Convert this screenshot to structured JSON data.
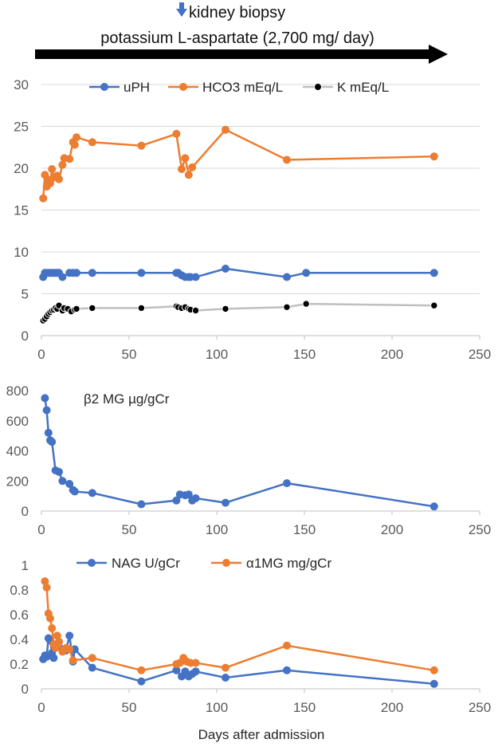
{
  "header": {
    "biopsy_label": "kidney biopsy",
    "biopsy_arrow_color": "#4472C4",
    "treatment_label": "potassium L-aspartate (2,700 mg/ day)"
  },
  "xlabel": "Days after admission",
  "chart_data": [
    {
      "type": "line",
      "title": "",
      "xlim": [
        0,
        250
      ],
      "ylim": [
        0,
        30
      ],
      "xticks": [
        "0",
        "50",
        "100",
        "150",
        "200",
        "250"
      ],
      "yticks": [
        "0",
        "5",
        "10",
        "15",
        "20",
        "25",
        "30"
      ],
      "grid": true,
      "legend_position": "top",
      "series": [
        {
          "name": "uPH",
          "color": "#4472C4",
          "x": [
            1,
            2,
            3,
            4,
            5,
            6,
            7,
            8,
            9,
            10,
            12,
            16,
            18,
            20,
            29,
            57,
            77,
            78,
            80,
            82,
            84,
            85,
            88,
            105,
            140,
            151,
            224
          ],
          "y": [
            7.0,
            7.5,
            7.5,
            7.5,
            7.5,
            7.5,
            7.5,
            7.5,
            7.5,
            7.5,
            7.0,
            7.5,
            7.5,
            7.5,
            7.5,
            7.5,
            7.5,
            7.5,
            7.2,
            7.0,
            7.0,
            7.0,
            7.0,
            8.0,
            7.0,
            7.5,
            7.5
          ]
        },
        {
          "name": "HCO3 mEq/L",
          "color": "#ED7D31",
          "x": [
            1,
            2,
            3,
            4,
            5,
            6,
            7,
            9,
            10,
            12,
            13,
            16,
            18,
            19,
            20,
            29,
            57,
            77,
            80,
            82,
            84,
            86,
            105,
            140,
            224
          ],
          "y": [
            16.4,
            19.2,
            17.8,
            18.6,
            18.2,
            19.9,
            18.9,
            19.1,
            18.7,
            20.4,
            21.2,
            21.1,
            23.1,
            22.8,
            23.7,
            23.1,
            22.7,
            24.1,
            19.9,
            21.2,
            19.2,
            20.1,
            24.6,
            21.0,
            21.4
          ]
        },
        {
          "name": "K mEq/L",
          "color": "#000000",
          "line_color": "#BFBFBF",
          "x": [
            1,
            2,
            3,
            4,
            5,
            6,
            7,
            8,
            9,
            10,
            12,
            13,
            15,
            17,
            19,
            20,
            29,
            57,
            77,
            78,
            80,
            82,
            84,
            85,
            88,
            105,
            140,
            151,
            224
          ],
          "y": [
            1.8,
            2.0,
            2.3,
            2.6,
            2.8,
            3.0,
            3.1,
            3.3,
            3.2,
            3.6,
            3.0,
            3.3,
            3.2,
            2.9,
            3.1,
            3.2,
            3.3,
            3.3,
            3.5,
            3.4,
            3.3,
            3.4,
            3.2,
            3.1,
            3.0,
            3.2,
            3.4,
            3.8,
            3.6
          ]
        }
      ]
    },
    {
      "type": "line",
      "title": "β2 MG µg/gCr",
      "xlim": [
        0,
        250
      ],
      "ylim": [
        0,
        800
      ],
      "xticks": [
        "0",
        "50",
        "100",
        "150",
        "200",
        "250"
      ],
      "yticks": [
        "0",
        "200",
        "400",
        "600",
        "800"
      ],
      "grid": false,
      "series": [
        {
          "name": "β2 MG µg/gCr",
          "color": "#4472C4",
          "x": [
            2,
            3,
            4,
            5,
            6,
            8,
            10,
            12,
            16,
            18,
            19,
            29,
            57,
            77,
            79,
            82,
            84,
            86,
            88,
            105,
            140,
            224
          ],
          "y": [
            750,
            670,
            520,
            470,
            460,
            270,
            260,
            200,
            180,
            140,
            130,
            120,
            45,
            70,
            110,
            105,
            110,
            70,
            85,
            55,
            185,
            30
          ]
        }
      ]
    },
    {
      "type": "line",
      "title": "",
      "xlim": [
        0,
        250
      ],
      "ylim": [
        0,
        1
      ],
      "xticks": [
        "0",
        "50",
        "100",
        "150",
        "200",
        "250"
      ],
      "yticks": [
        "0",
        "0.2",
        "0.4",
        "0.6",
        "0.8",
        "1"
      ],
      "grid": false,
      "legend_position": "top",
      "series": [
        {
          "name": "NAG U/gCr",
          "color": "#4472C4",
          "x": [
            1,
            2,
            3,
            4,
            5,
            6,
            7,
            8,
            10,
            12,
            14,
            16,
            18,
            19,
            29,
            57,
            77,
            80,
            82,
            84,
            86,
            88,
            105,
            140,
            224
          ],
          "y": [
            0.24,
            0.27,
            0.26,
            0.41,
            0.39,
            0.29,
            0.25,
            0.36,
            0.38,
            0.32,
            0.31,
            0.43,
            0.22,
            0.32,
            0.17,
            0.06,
            0.15,
            0.1,
            0.14,
            0.1,
            0.12,
            0.14,
            0.09,
            0.15,
            0.04
          ]
        },
        {
          "name": "α1MG mg/gCr",
          "color": "#ED7D31",
          "x": [
            2,
            3,
            4,
            5,
            6,
            7,
            8,
            9,
            10,
            12,
            14,
            16,
            18,
            29,
            57,
            77,
            79,
            81,
            83,
            85,
            88,
            105,
            140,
            224
          ],
          "y": [
            0.87,
            0.82,
            0.61,
            0.57,
            0.49,
            0.36,
            0.33,
            0.43,
            0.38,
            0.3,
            0.33,
            0.32,
            0.23,
            0.25,
            0.15,
            0.2,
            0.21,
            0.25,
            0.22,
            0.21,
            0.21,
            0.17,
            0.35,
            0.15
          ]
        }
      ]
    }
  ]
}
